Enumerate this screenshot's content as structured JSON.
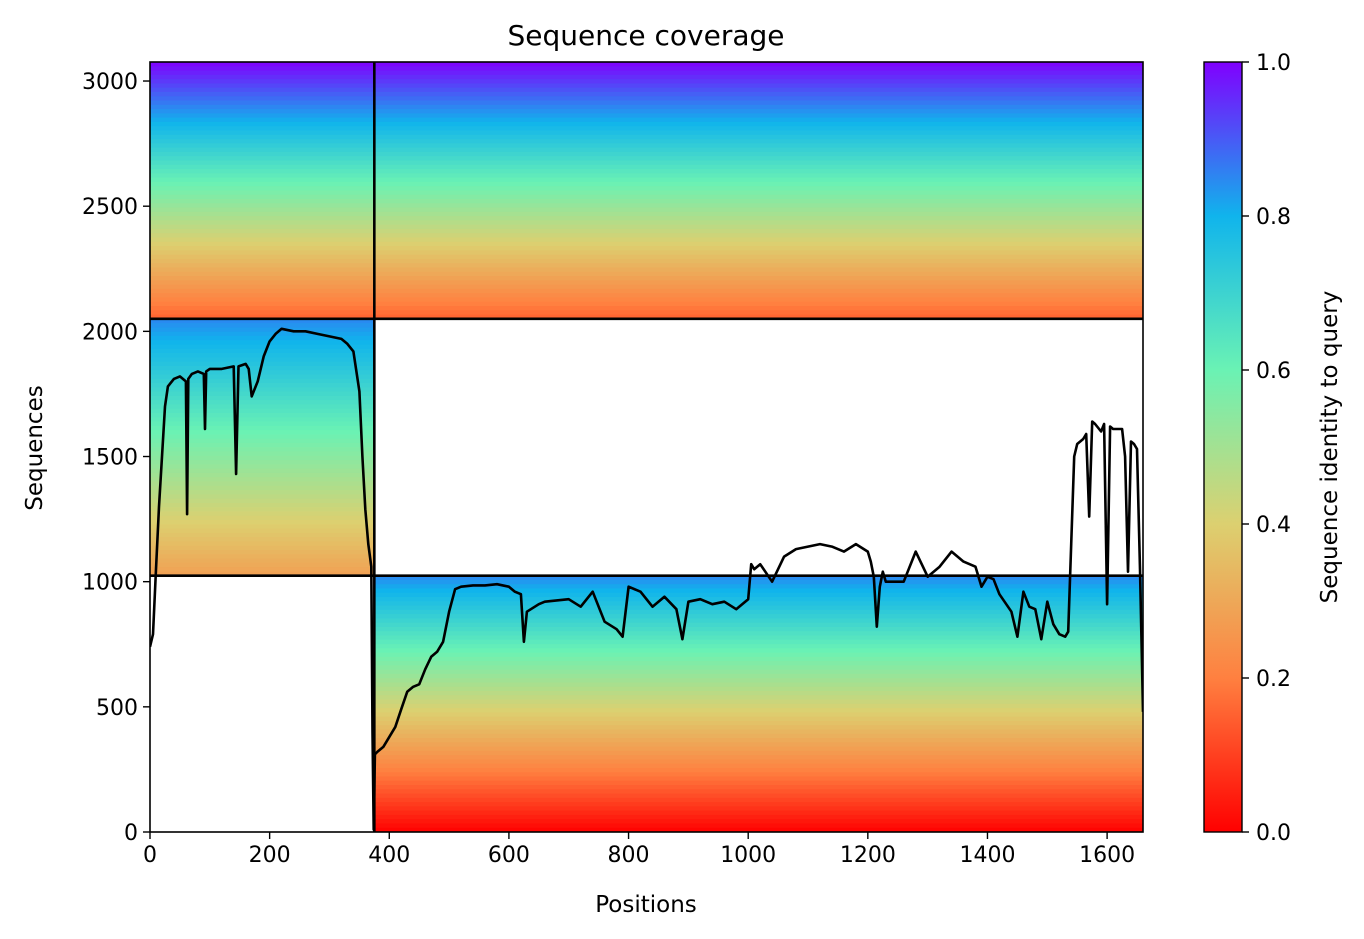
{
  "chart_data": {
    "type": "heatmap",
    "title": "Sequence coverage",
    "xlabel": "Positions",
    "ylabel": "Sequences",
    "xlim": [
      0,
      1660
    ],
    "ylim": [
      0,
      3076
    ],
    "xticks": [
      0,
      200,
      400,
      600,
      800,
      1000,
      1200,
      1400,
      1600
    ],
    "yticks": [
      0,
      500,
      1000,
      1500,
      2000,
      2500,
      3000
    ],
    "colorbar": {
      "label": "Sequence identity to query",
      "colormap": "rainbow_r",
      "range": [
        0,
        1
      ],
      "ticks": [
        "0.0",
        "0.2",
        "0.4",
        "0.6",
        "0.8",
        "1.0"
      ],
      "colors": [
        "#ff0000",
        "#ff8040",
        "#dcd070",
        "#6af2b4",
        "#10b4ec",
        "#8000ff"
      ]
    },
    "dividers": {
      "vertical_x": 375,
      "horizontal_y": [
        1024,
        2050
      ]
    },
    "blocks": [
      {
        "name": "paired",
        "x": [
          0,
          1660
        ],
        "y": [
          2050,
          3076
        ],
        "identity_top": 1.0,
        "identity_bottom": 0.15
      },
      {
        "name": "unpaired-chain-1",
        "x": [
          0,
          375
        ],
        "y": [
          1024,
          2050
        ],
        "identity_top": 0.85,
        "identity_bottom": 0.28
      },
      {
        "name": "unpaired-chain-2",
        "x": [
          375,
          1660
        ],
        "y": [
          0,
          1024
        ],
        "identity_top": 0.85,
        "identity_bottom": 0.0
      }
    ],
    "coverage_line": {
      "name": "coverage",
      "x": [
        0,
        5,
        10,
        15,
        20,
        25,
        30,
        40,
        50,
        60,
        62,
        64,
        70,
        80,
        90,
        92,
        94,
        100,
        120,
        140,
        144,
        148,
        160,
        165,
        170,
        180,
        190,
        200,
        210,
        220,
        240,
        260,
        280,
        300,
        320,
        330,
        340,
        350,
        355,
        360,
        365,
        370,
        372,
        374,
        376,
        380,
        390,
        400,
        410,
        420,
        430,
        440,
        450,
        460,
        470,
        480,
        490,
        500,
        510,
        520,
        540,
        560,
        580,
        600,
        610,
        620,
        625,
        630,
        650,
        660,
        700,
        720,
        740,
        760,
        780,
        790,
        800,
        820,
        840,
        860,
        880,
        890,
        900,
        920,
        940,
        960,
        980,
        1000,
        1005,
        1010,
        1020,
        1040,
        1060,
        1080,
        1100,
        1120,
        1140,
        1160,
        1180,
        1200,
        1205,
        1210,
        1215,
        1220,
        1225,
        1230,
        1260,
        1280,
        1300,
        1320,
        1340,
        1360,
        1380,
        1390,
        1400,
        1410,
        1420,
        1440,
        1450,
        1460,
        1470,
        1480,
        1490,
        1500,
        1510,
        1520,
        1530,
        1535,
        1540,
        1545,
        1550,
        1560,
        1565,
        1570,
        1575,
        1580,
        1590,
        1595,
        1600,
        1605,
        1610,
        1620,
        1625,
        1630,
        1635,
        1640,
        1645,
        1650,
        1655,
        1660
      ],
      "y": [
        740,
        790,
        1050,
        1300,
        1500,
        1700,
        1780,
        1810,
        1820,
        1800,
        1270,
        1810,
        1830,
        1840,
        1830,
        1610,
        1840,
        1850,
        1850,
        1860,
        1430,
        1860,
        1870,
        1850,
        1740,
        1800,
        1900,
        1960,
        1990,
        2010,
        2000,
        2000,
        1990,
        1980,
        1970,
        1950,
        1920,
        1760,
        1500,
        1290,
        1150,
        1060,
        400,
        10,
        310,
        320,
        340,
        380,
        420,
        490,
        560,
        580,
        590,
        650,
        700,
        720,
        760,
        880,
        970,
        980,
        985,
        985,
        990,
        980,
        960,
        950,
        760,
        880,
        910,
        920,
        930,
        900,
        960,
        840,
        810,
        780,
        980,
        960,
        900,
        940,
        890,
        770,
        920,
        930,
        910,
        920,
        890,
        930,
        1070,
        1050,
        1070,
        1000,
        1100,
        1130,
        1140,
        1150,
        1140,
        1120,
        1150,
        1120,
        1080,
        1020,
        820,
        980,
        1040,
        1000,
        1000,
        1120,
        1020,
        1060,
        1120,
        1080,
        1060,
        980,
        1020,
        1010,
        950,
        880,
        780,
        960,
        900,
        890,
        770,
        920,
        830,
        790,
        780,
        800,
        1150,
        1500,
        1550,
        1570,
        1590,
        1260,
        1640,
        1630,
        1600,
        1630,
        910,
        1620,
        1610,
        1610,
        1610,
        1500,
        1040,
        1560,
        1550,
        1530,
        1050,
        480
      ]
    }
  }
}
